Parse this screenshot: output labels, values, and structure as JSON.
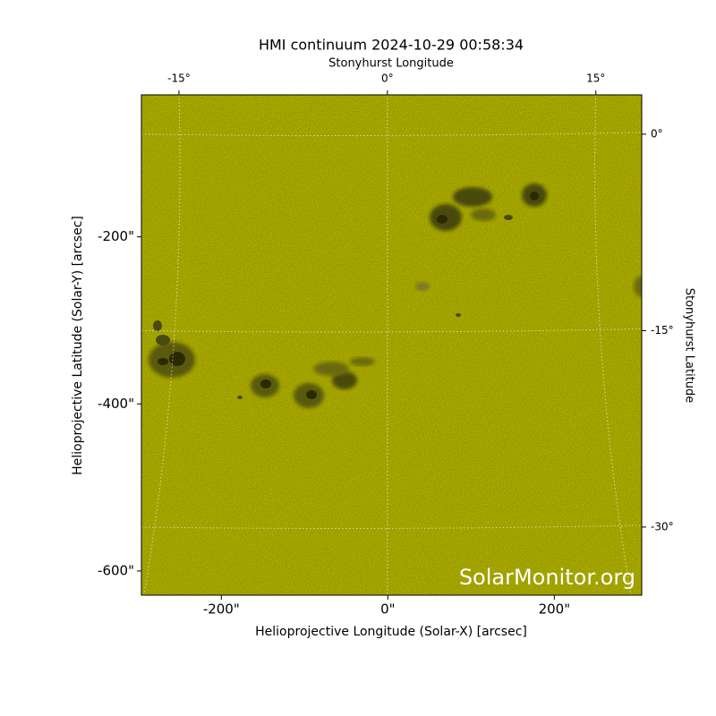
{
  "chart_data": {
    "type": "image",
    "title": "HMI continuum 2024-10-29 00:58:34",
    "xlabel": "Helioprojective Longitude (Solar-X) [arcsec]",
    "ylabel": "Helioprojective Latitude (Solar-Y) [arcsec]",
    "x2label": "Stonyhurst Longitude",
    "y2label": "Stonyhurst Latitude",
    "xlim": [
      -296,
      305
    ],
    "ylim": [
      -629,
      -30
    ],
    "xticks": [
      {
        "value": -200,
        "label": "-200\""
      },
      {
        "value": 0,
        "label": "0\""
      },
      {
        "value": 200,
        "label": "200\""
      }
    ],
    "yticks": [
      {
        "value": -200,
        "label": "-200\""
      },
      {
        "value": -400,
        "label": "-400\""
      },
      {
        "value": -600,
        "label": "-600\""
      }
    ],
    "x2lim": [
      -17.7,
      18.3
    ],
    "x2ticks": [
      {
        "value": -15,
        "label": "-15°"
      },
      {
        "value": 0,
        "label": "0°"
      },
      {
        "value": 15,
        "label": "15°"
      }
    ],
    "y2lim": [
      -35.2,
      3.0
    ],
    "y2ticks": [
      {
        "value": 0,
        "label": "0°"
      },
      {
        "value": -15,
        "label": "-15°"
      },
      {
        "value": -30,
        "label": "-30°"
      }
    ],
    "grid": true,
    "color": "#c4c400",
    "watermark": "SolarMonitor.org"
  }
}
